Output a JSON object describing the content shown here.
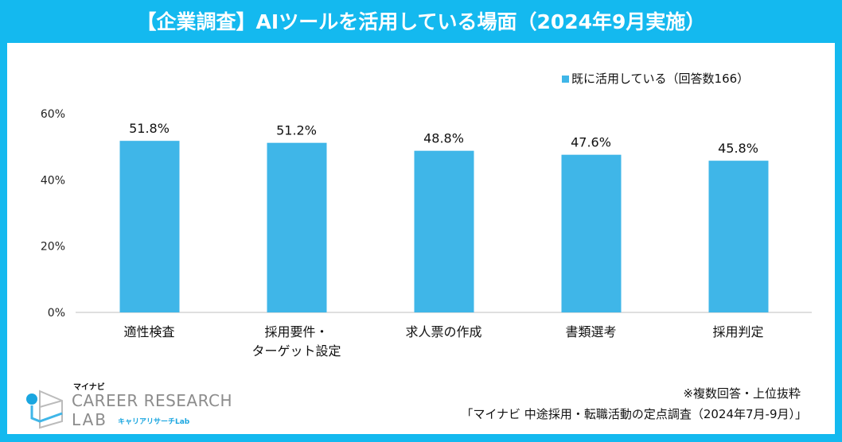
{
  "title": "【企業調査】AIツールを活用している場面（2024年9月実施）",
  "colors": {
    "frame": "#14b9ef",
    "bar": "#3fb6e8"
  },
  "chart_data": {
    "type": "bar",
    "categories": [
      "適性検査",
      "採用要件・\nターゲット設定",
      "求人票の作成",
      "書類選考",
      "採用判定"
    ],
    "series": [
      {
        "name": "既に活用している（回答数166）",
        "values": [
          51.8,
          51.2,
          48.8,
          47.6,
          45.8
        ]
      }
    ],
    "data_labels": [
      "51.8%",
      "51.2%",
      "48.8%",
      "47.6%",
      "45.8%"
    ],
    "yticks": [
      "0%",
      "20%",
      "40%",
      "60%"
    ],
    "ylim": [
      0,
      60
    ],
    "grid": false,
    "legend": "top-right"
  },
  "notes": {
    "line1": "※複数回答・上位抜粋",
    "line2": "「マイナビ 中途採用・転職活動の定点調査（2024年7月-9月）」"
  },
  "logo": {
    "brand": "マイナビ",
    "line1": "CAREER RESEARCH",
    "line2": "LAB",
    "sub": "キャリアリサーチLab"
  }
}
